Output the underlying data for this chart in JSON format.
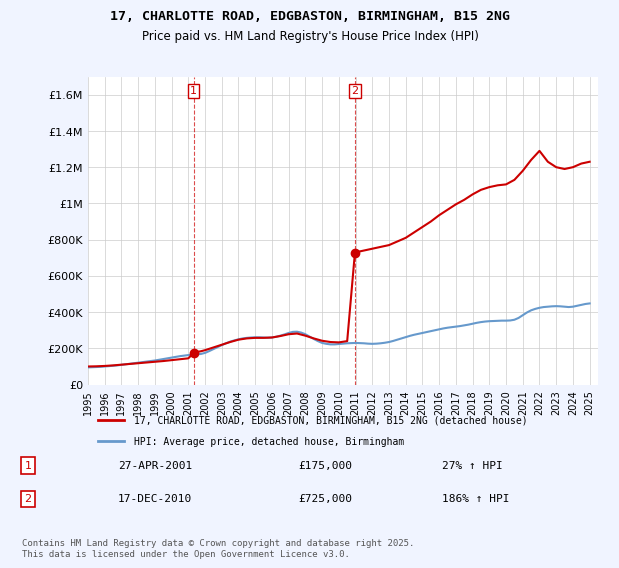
{
  "title_line1": "17, CHARLOTTE ROAD, EDGBASTON, BIRMINGHAM, B15 2NG",
  "title_line2": "Price paid vs. HM Land Registry's House Price Index (HPI)",
  "property_label": "17, CHARLOTTE ROAD, EDGBASTON, BIRMINGHAM, B15 2NG (detached house)",
  "hpi_label": "HPI: Average price, detached house, Birmingham",
  "xmin": 1995.0,
  "xmax": 2025.5,
  "ymin": 0,
  "ymax": 1700000,
  "yticks": [
    0,
    200000,
    400000,
    600000,
    800000,
    1000000,
    1200000,
    1400000,
    1600000
  ],
  "ytick_labels": [
    "£0",
    "£200K",
    "£400K",
    "£600K",
    "£800K",
    "£1M",
    "£1.2M",
    "£1.4M",
    "£1.6M"
  ],
  "xticks": [
    1995,
    1996,
    1997,
    1998,
    1999,
    2000,
    2001,
    2002,
    2003,
    2004,
    2005,
    2006,
    2007,
    2008,
    2009,
    2010,
    2011,
    2012,
    2013,
    2014,
    2015,
    2016,
    2017,
    2018,
    2019,
    2020,
    2021,
    2022,
    2023,
    2024,
    2025
  ],
  "purchase1_x": 2001.32,
  "purchase1_y": 175000,
  "purchase1_label": "1",
  "purchase1_date": "27-APR-2001",
  "purchase1_price": "£175,000",
  "purchase1_hpi": "27% ↑ HPI",
  "purchase2_x": 2010.96,
  "purchase2_y": 725000,
  "purchase2_label": "2",
  "purchase2_date": "17-DEC-2010",
  "purchase2_price": "£725,000",
  "purchase2_hpi": "186% ↑ HPI",
  "line_color_property": "#cc0000",
  "line_color_hpi": "#6699cc",
  "vline_color": "#cc0000",
  "bg_color": "#f0f4ff",
  "plot_bg": "#ffffff",
  "footer_text": "Contains HM Land Registry data © Crown copyright and database right 2025.\nThis data is licensed under the Open Government Licence v3.0.",
  "hpi_data_x": [
    1995.0,
    1995.25,
    1995.5,
    1995.75,
    1996.0,
    1996.25,
    1996.5,
    1996.75,
    1997.0,
    1997.25,
    1997.5,
    1997.75,
    1998.0,
    1998.25,
    1998.5,
    1998.75,
    1999.0,
    1999.25,
    1999.5,
    1999.75,
    2000.0,
    2000.25,
    2000.5,
    2000.75,
    2001.0,
    2001.25,
    2001.5,
    2001.75,
    2002.0,
    2002.25,
    2002.5,
    2002.75,
    2003.0,
    2003.25,
    2003.5,
    2003.75,
    2004.0,
    2004.25,
    2004.5,
    2004.75,
    2005.0,
    2005.25,
    2005.5,
    2005.75,
    2006.0,
    2006.25,
    2006.5,
    2006.75,
    2007.0,
    2007.25,
    2007.5,
    2007.75,
    2008.0,
    2008.25,
    2008.5,
    2008.75,
    2009.0,
    2009.25,
    2009.5,
    2009.75,
    2010.0,
    2010.25,
    2010.5,
    2010.75,
    2011.0,
    2011.25,
    2011.5,
    2011.75,
    2012.0,
    2012.25,
    2012.5,
    2012.75,
    2013.0,
    2013.25,
    2013.5,
    2013.75,
    2014.0,
    2014.25,
    2014.5,
    2014.75,
    2015.0,
    2015.25,
    2015.5,
    2015.75,
    2016.0,
    2016.25,
    2016.5,
    2016.75,
    2017.0,
    2017.25,
    2017.5,
    2017.75,
    2018.0,
    2018.25,
    2018.5,
    2018.75,
    2019.0,
    2019.25,
    2019.5,
    2019.75,
    2020.0,
    2020.25,
    2020.5,
    2020.75,
    2021.0,
    2021.25,
    2021.5,
    2021.75,
    2022.0,
    2022.25,
    2022.5,
    2022.75,
    2023.0,
    2023.25,
    2023.5,
    2023.75,
    2024.0,
    2024.25,
    2024.5,
    2024.75,
    2025.0
  ],
  "hpi_data_y": [
    95000,
    96000,
    97000,
    98000,
    100000,
    102000,
    104000,
    106000,
    109000,
    112000,
    115000,
    118000,
    121000,
    124000,
    127000,
    130000,
    133000,
    137000,
    141000,
    145000,
    149000,
    153000,
    157000,
    160000,
    163000,
    165000,
    167000,
    169000,
    175000,
    185000,
    196000,
    207000,
    218000,
    228000,
    237000,
    244000,
    250000,
    255000,
    258000,
    260000,
    261000,
    261000,
    260000,
    259000,
    260000,
    264000,
    270000,
    277000,
    285000,
    291000,
    292000,
    287000,
    278000,
    265000,
    252000,
    240000,
    230000,
    225000,
    222000,
    222000,
    224000,
    226000,
    228000,
    229000,
    230000,
    229000,
    228000,
    226000,
    225000,
    226000,
    228000,
    231000,
    235000,
    241000,
    248000,
    255000,
    262000,
    269000,
    275000,
    280000,
    285000,
    290000,
    295000,
    300000,
    305000,
    310000,
    314000,
    317000,
    320000,
    323000,
    327000,
    331000,
    336000,
    341000,
    345000,
    348000,
    350000,
    351000,
    352000,
    353000,
    353000,
    354000,
    358000,
    368000,
    383000,
    398000,
    410000,
    418000,
    424000,
    428000,
    430000,
    432000,
    433000,
    432000,
    430000,
    428000,
    430000,
    435000,
    440000,
    445000,
    448000
  ],
  "property_data_x": [
    1995.0,
    1995.5,
    1996.0,
    1996.5,
    1997.0,
    1997.5,
    1998.0,
    1998.5,
    1999.0,
    1999.5,
    2000.0,
    2000.5,
    2001.0,
    2001.32,
    2001.5,
    2001.75,
    2002.0,
    2002.5,
    2003.0,
    2003.5,
    2004.0,
    2004.5,
    2005.0,
    2005.5,
    2006.0,
    2006.5,
    2007.0,
    2007.5,
    2008.0,
    2008.5,
    2009.0,
    2009.5,
    2010.0,
    2010.5,
    2010.96,
    2011.0,
    2011.5,
    2012.0,
    2012.5,
    2013.0,
    2013.5,
    2014.0,
    2014.5,
    2015.0,
    2015.5,
    2016.0,
    2016.5,
    2017.0,
    2017.5,
    2018.0,
    2018.5,
    2019.0,
    2019.5,
    2020.0,
    2020.5,
    2021.0,
    2021.5,
    2022.0,
    2022.5,
    2023.0,
    2023.5,
    2024.0,
    2024.5,
    2025.0
  ],
  "property_data_y": [
    100000,
    101000,
    103000,
    106000,
    110000,
    114000,
    118000,
    122000,
    126000,
    130000,
    135000,
    140000,
    145000,
    175000,
    180000,
    184000,
    190000,
    205000,
    220000,
    235000,
    248000,
    255000,
    258000,
    258000,
    260000,
    268000,
    278000,
    282000,
    270000,
    255000,
    242000,
    235000,
    233000,
    240000,
    725000,
    730000,
    740000,
    750000,
    760000,
    770000,
    790000,
    810000,
    840000,
    870000,
    900000,
    935000,
    965000,
    995000,
    1020000,
    1050000,
    1075000,
    1090000,
    1100000,
    1105000,
    1130000,
    1180000,
    1240000,
    1290000,
    1230000,
    1200000,
    1190000,
    1200000,
    1220000,
    1230000
  ]
}
